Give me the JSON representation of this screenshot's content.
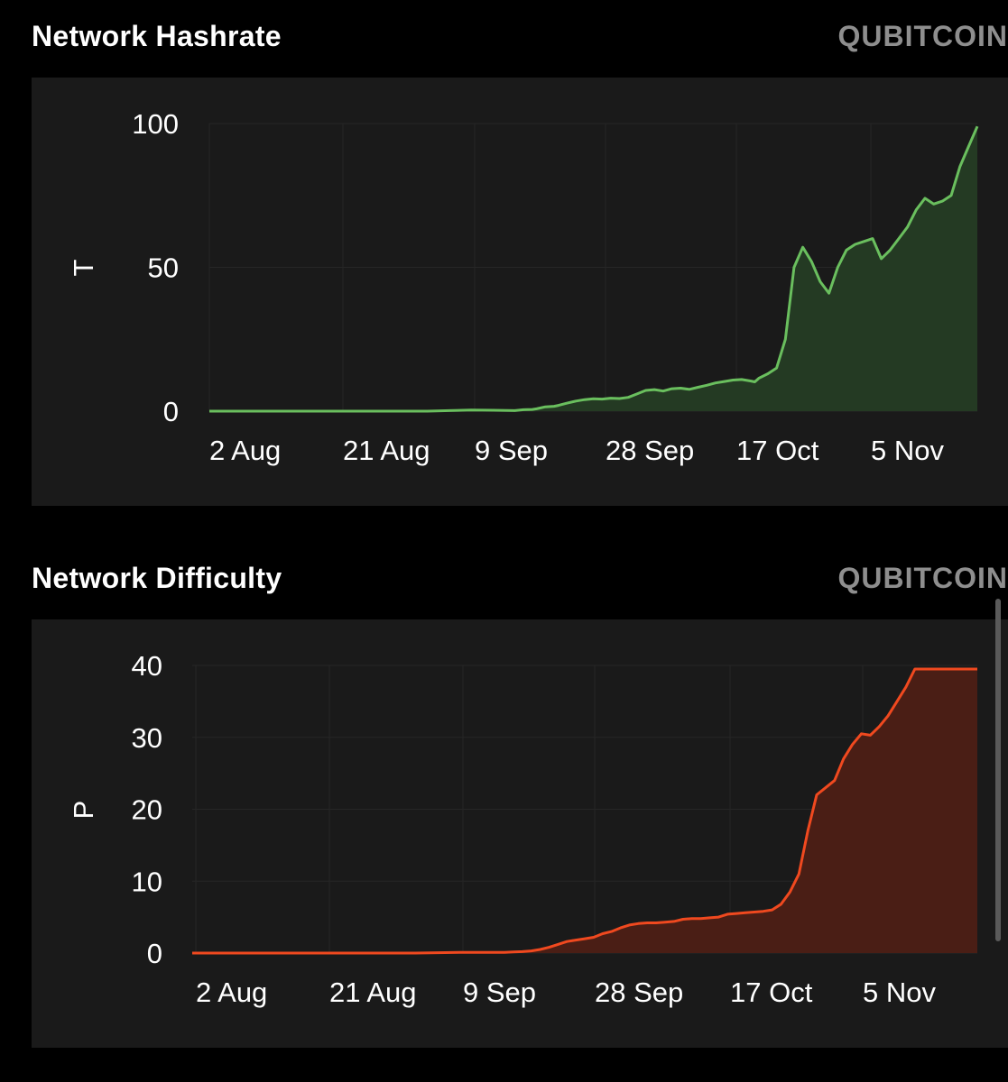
{
  "brand": "QUBITCOIN",
  "charts": [
    {
      "title": "Network Hashrate",
      "ylabel": "T",
      "color": "#6abf5e",
      "fill": "#243a23",
      "yticks": [
        0,
        50,
        100
      ],
      "xticks": [
        "2 Aug",
        "21 Aug",
        "9 Sep",
        "28 Sep",
        "17 Oct",
        "5 Nov"
      ]
    },
    {
      "title": "Network Difficulty",
      "ylabel": "P",
      "color": "#f0491f",
      "fill": "#4a1e15",
      "yticks": [
        0,
        10,
        20,
        30,
        40
      ],
      "xticks": [
        "2 Aug",
        "21 Aug",
        "9 Sep",
        "28 Sep",
        "17 Oct",
        "5 Nov"
      ]
    }
  ],
  "chart_data": [
    {
      "type": "area",
      "title": "Network Hashrate",
      "ylabel": "T",
      "ylim": [
        0,
        100
      ],
      "x_start": "2 Aug",
      "x_step_days": 1,
      "x_ticks": [
        "2 Aug",
        "21 Aug",
        "9 Sep",
        "28 Sep",
        "17 Oct",
        "5 Nov"
      ],
      "series": [
        {
          "name": "Network Hashrate",
          "x": [
            0,
            10,
            20,
            30,
            40,
            50,
            55,
            60,
            65,
            70,
            72,
            74,
            75,
            77,
            79,
            80,
            82,
            84,
            86,
            88,
            90,
            92,
            94,
            96,
            98,
            100,
            102,
            104,
            106,
            108,
            110,
            112,
            114,
            116,
            118,
            120,
            122,
            124,
            125,
            126,
            128,
            130,
            132,
            134,
            136,
            138,
            140,
            142,
            144,
            146,
            148,
            150,
            152,
            154,
            156,
            158,
            160,
            162,
            164,
            166,
            168,
            170,
            172,
            174,
            176
          ],
          "values": [
            0,
            0,
            0,
            0,
            0,
            0,
            0.2,
            0.4,
            0.3,
            0.2,
            0.5,
            0.6,
            0.8,
            1.5,
            1.7,
            2.0,
            2.8,
            3.5,
            4.0,
            4.3,
            4.2,
            4.5,
            4.4,
            4.8,
            6.0,
            7.2,
            7.5,
            7.0,
            7.8,
            8.0,
            7.6,
            8.3,
            9.0,
            9.8,
            10.3,
            10.8,
            11.0,
            10.5,
            10.2,
            11.5,
            13.0,
            15.0,
            25.0,
            50.0,
            57.0,
            52.0,
            45.0,
            41.0,
            50.0,
            56.0,
            58.0,
            59.0,
            60.0,
            53.0,
            56.0,
            60.0,
            64.0,
            70.0,
            74.0,
            72.0,
            73.0,
            75.0,
            85.0,
            92.0,
            99.0
          ]
        }
      ]
    },
    {
      "type": "area",
      "title": "Network Difficulty",
      "ylabel": "P",
      "ylim": [
        0,
        40
      ],
      "x_start": "2 Aug",
      "x_step_days": 1,
      "x_ticks": [
        "2 Aug",
        "21 Aug",
        "9 Sep",
        "28 Sep",
        "17 Oct",
        "5 Nov"
      ],
      "series": [
        {
          "name": "Network Difficulty",
          "x": [
            0,
            10,
            20,
            30,
            40,
            50,
            55,
            60,
            65,
            70,
            72,
            74,
            76,
            78,
            80,
            82,
            84,
            86,
            88,
            90,
            92,
            94,
            96,
            98,
            100,
            102,
            104,
            106,
            108,
            110,
            112,
            114,
            116,
            118,
            120,
            122,
            124,
            126,
            128,
            130,
            132,
            134,
            136,
            138,
            140,
            142,
            144,
            146,
            148,
            150,
            152,
            154,
            156,
            158,
            160,
            162,
            164,
            166,
            168,
            170,
            172,
            174,
            176
          ],
          "values": [
            0,
            0,
            0,
            0,
            0,
            0,
            0.05,
            0.1,
            0.1,
            0.1,
            0.15,
            0.2,
            0.3,
            0.5,
            0.8,
            1.2,
            1.6,
            1.8,
            2.0,
            2.2,
            2.7,
            3.0,
            3.5,
            3.9,
            4.1,
            4.2,
            4.2,
            4.3,
            4.4,
            4.7,
            4.8,
            4.8,
            4.9,
            5.0,
            5.4,
            5.5,
            5.6,
            5.7,
            5.8,
            6.0,
            6.8,
            8.5,
            11.0,
            17.0,
            22.0,
            23.0,
            24.0,
            27.0,
            29.0,
            30.5,
            30.3,
            31.5,
            33.0,
            35.0,
            37.0,
            39.5,
            39.5,
            39.5,
            39.5,
            39.5,
            39.5,
            39.5,
            39.5
          ]
        }
      ]
    }
  ]
}
